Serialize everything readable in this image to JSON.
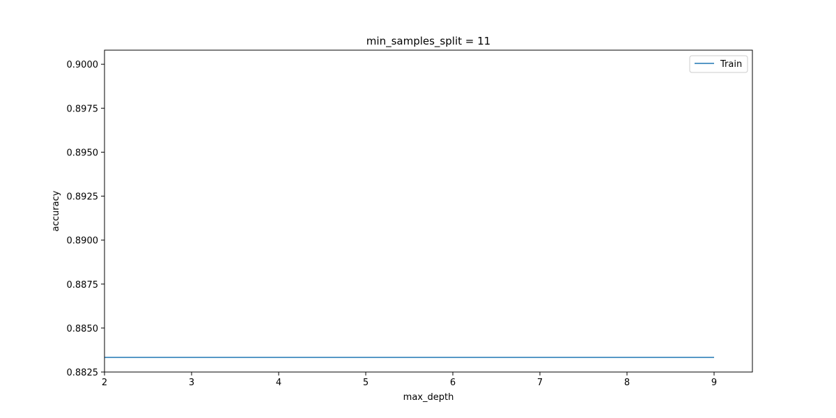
{
  "chart_data": {
    "type": "line",
    "title": "min_samples_split = 11",
    "xlabel": "max_depth",
    "ylabel": "accuracy",
    "x": [
      2,
      3,
      4,
      5,
      6,
      7,
      8,
      9
    ],
    "series": [
      {
        "name": "Train",
        "values": [
          0.88333,
          0.88333,
          0.88333,
          0.88333,
          0.88333,
          0.88333,
          0.88333,
          0.88333
        ],
        "color": "#1f77b4"
      }
    ],
    "xlim": [
      2,
      9.44
    ],
    "ylim": [
      0.8825,
      0.9008
    ],
    "xticks": [
      2,
      3,
      4,
      5,
      6,
      7,
      8,
      9
    ],
    "xtick_labels": [
      "2",
      "3",
      "4",
      "5",
      "6",
      "7",
      "8",
      "9"
    ],
    "yticks": [
      0.8825,
      0.885,
      0.8875,
      0.89,
      0.8925,
      0.895,
      0.8975,
      0.9
    ],
    "ytick_labels": [
      "0.8825",
      "0.8850",
      "0.8875",
      "0.8900",
      "0.8925",
      "0.8950",
      "0.8975",
      "0.9000"
    ],
    "grid": false,
    "legend_position": "top-right"
  }
}
